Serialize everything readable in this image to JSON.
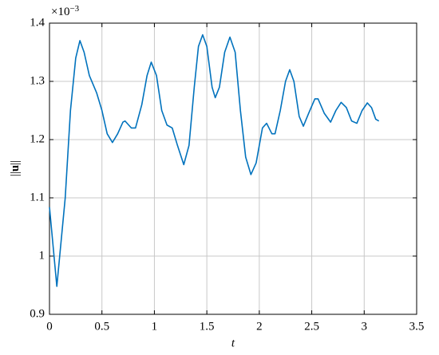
{
  "chart_data": {
    "type": "line",
    "x_label": "t",
    "y_label_bars": "||",
    "y_label_symbol": "u",
    "y_multiplier": "×10",
    "y_multiplier_exponent": "−3",
    "x": [
      0,
      0.07,
      0.15,
      0.2,
      0.25,
      0.29,
      0.33,
      0.38,
      0.45,
      0.5,
      0.55,
      0.6,
      0.65,
      0.7,
      0.72,
      0.78,
      0.82,
      0.88,
      0.93,
      0.97,
      1.02,
      1.07,
      1.12,
      1.17,
      1.22,
      1.28,
      1.33,
      1.38,
      1.42,
      1.46,
      1.5,
      1.55,
      1.58,
      1.62,
      1.67,
      1.72,
      1.77,
      1.82,
      1.87,
      1.92,
      1.97,
      2.03,
      2.07,
      2.12,
      2.15,
      2.2,
      2.25,
      2.29,
      2.33,
      2.38,
      2.42,
      2.47,
      2.53,
      2.56,
      2.62,
      2.68,
      2.73,
      2.78,
      2.83,
      2.88,
      2.93,
      2.98,
      3.03,
      3.07,
      3.11,
      3.14
    ],
    "series": [
      {
        "color": "#0072bd",
        "values": [
          1.084,
          0.948,
          1.1,
          1.25,
          1.34,
          1.37,
          1.35,
          1.31,
          1.28,
          1.25,
          1.21,
          1.195,
          1.21,
          1.23,
          1.232,
          1.22,
          1.22,
          1.26,
          1.31,
          1.333,
          1.31,
          1.25,
          1.225,
          1.22,
          1.19,
          1.157,
          1.19,
          1.29,
          1.36,
          1.38,
          1.36,
          1.29,
          1.272,
          1.29,
          1.35,
          1.376,
          1.35,
          1.25,
          1.17,
          1.14,
          1.16,
          1.22,
          1.228,
          1.21,
          1.21,
          1.25,
          1.3,
          1.32,
          1.3,
          1.24,
          1.223,
          1.245,
          1.27,
          1.27,
          1.245,
          1.23,
          1.25,
          1.264,
          1.255,
          1.232,
          1.228,
          1.25,
          1.263,
          1.255,
          1.235,
          1.232
        ]
      }
    ],
    "xlim": [
      0,
      3.5
    ],
    "xticks": [
      0,
      0.5,
      1,
      1.5,
      2,
      2.5,
      3,
      3.5
    ],
    "ylim": [
      0.9,
      1.4
    ],
    "yticks": [
      0.9,
      1,
      1.1,
      1.2,
      1.3,
      1.4
    ],
    "grid": true
  }
}
